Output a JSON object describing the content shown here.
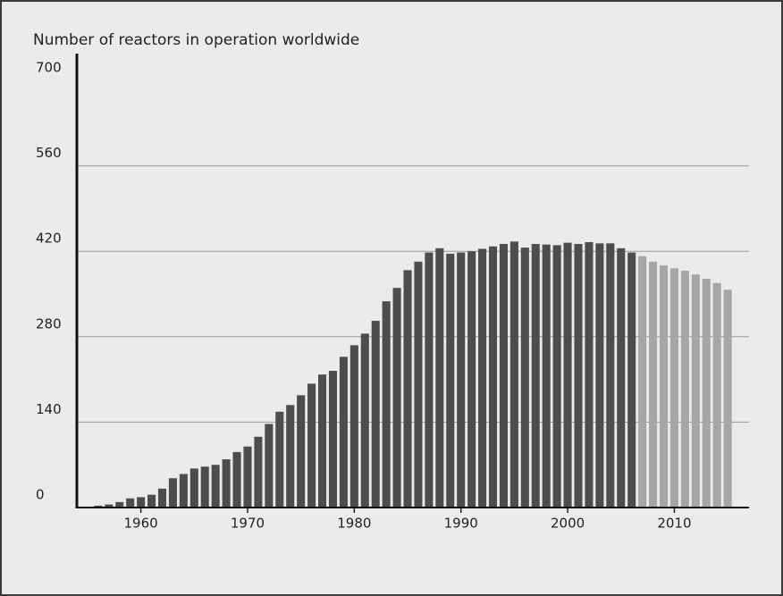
{
  "chart_data": {
    "type": "bar",
    "title": "Number of reactors in operation worldwide",
    "x": [
      1955,
      1956,
      1957,
      1958,
      1959,
      1960,
      1961,
      1962,
      1963,
      1964,
      1965,
      1966,
      1967,
      1968,
      1969,
      1970,
      1971,
      1972,
      1973,
      1974,
      1975,
      1976,
      1977,
      1978,
      1979,
      1980,
      1981,
      1982,
      1983,
      1984,
      1985,
      1986,
      1987,
      1988,
      1989,
      1990,
      1991,
      1992,
      1993,
      1994,
      1995,
      1996,
      1997,
      1998,
      1999,
      2000,
      2001,
      2002,
      2003,
      2004,
      2005,
      2006,
      2007,
      2008,
      2009,
      2010,
      2011,
      2012,
      2013,
      2014,
      2015
    ],
    "values": [
      1,
      3,
      5,
      9,
      15,
      17,
      21,
      31,
      48,
      55,
      64,
      67,
      70,
      79,
      91,
      100,
      116,
      137,
      157,
      168,
      184,
      203,
      218,
      224,
      247,
      266,
      285,
      306,
      338,
      360,
      389,
      403,
      418,
      425,
      416,
      418,
      420,
      424,
      428,
      432,
      436,
      426,
      432,
      431,
      430,
      434,
      432,
      435,
      433,
      433,
      425,
      418,
      412,
      403,
      397,
      392,
      388,
      382,
      375,
      368,
      357
    ],
    "colors": [
      "#4d4d4d",
      "#4d4d4d",
      "#4d4d4d",
      "#4d4d4d",
      "#4d4d4d",
      "#4d4d4d",
      "#4d4d4d",
      "#4d4d4d",
      "#4d4d4d",
      "#4d4d4d",
      "#4d4d4d",
      "#4d4d4d",
      "#4d4d4d",
      "#4d4d4d",
      "#4d4d4d",
      "#4d4d4d",
      "#4d4d4d",
      "#4d4d4d",
      "#4d4d4d",
      "#4d4d4d",
      "#4d4d4d",
      "#4d4d4d",
      "#4d4d4d",
      "#4d4d4d",
      "#4d4d4d",
      "#4d4d4d",
      "#4d4d4d",
      "#4d4d4d",
      "#4d4d4d",
      "#4d4d4d",
      "#4d4d4d",
      "#4d4d4d",
      "#4d4d4d",
      "#4d4d4d",
      "#4d4d4d",
      "#4d4d4d",
      "#4d4d4d",
      "#4d4d4d",
      "#4d4d4d",
      "#4d4d4d",
      "#4d4d4d",
      "#4d4d4d",
      "#4d4d4d",
      "#4d4d4d",
      "#4d4d4d",
      "#4d4d4d",
      "#4d4d4d",
      "#4d4d4d",
      "#4d4d4d",
      "#4d4d4d",
      "#4d4d4d",
      "#4d4d4d",
      "#a6a6a6",
      "#a6a6a6",
      "#a6a6a6",
      "#a6a6a6",
      "#a6a6a6",
      "#a6a6a6",
      "#a6a6a6",
      "#a6a6a6",
      "#a6a6a6"
    ],
    "xlim": [
      1954,
      2017
    ],
    "xticks": [
      1960,
      1970,
      1980,
      1990,
      2000,
      2010
    ],
    "ylim": [
      0,
      700
    ],
    "yticks": [
      0,
      140,
      280,
      420,
      560,
      700
    ],
    "grid": true
  }
}
